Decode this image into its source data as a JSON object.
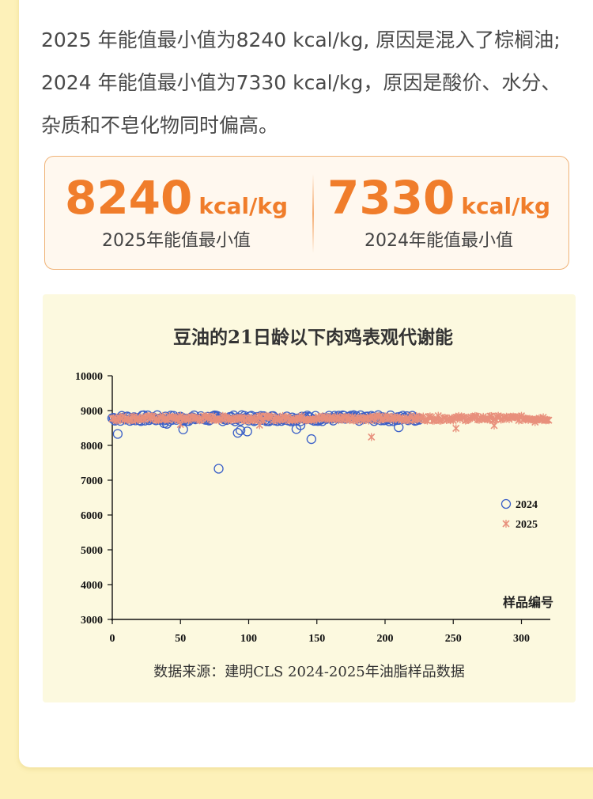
{
  "intro": {
    "line1": "2025 年能值最小值为8240 kcal/kg, 原因是混入了棕榈油;",
    "line2": "2024 年能值最小值为7330 kcal/kg，原因是酸价、水分、",
    "line3": "杂质和不皂化物同时偏高。"
  },
  "stats": [
    {
      "value": "8240",
      "unit": "kcal/kg",
      "label": "2025年能值最小值"
    },
    {
      "value": "7330",
      "unit": "kcal/kg",
      "label": "2024年能值最小值"
    }
  ],
  "colors": {
    "accent": "#f07d2b",
    "series2024": "#3a5fc8",
    "series2025": "#e8907c"
  },
  "chart_data": {
    "type": "scatter",
    "title": "豆油的21日龄以下肉鸡表观代谢能",
    "xlabel": "样品编号",
    "ylabel": "",
    "xlim": [
      0,
      320
    ],
    "ylim": [
      3000,
      10000
    ],
    "xticks": [
      0,
      50,
      100,
      150,
      200,
      250,
      300
    ],
    "yticks": [
      3000,
      4000,
      5000,
      6000,
      7000,
      8000,
      9000,
      10000
    ],
    "legend_position": "right",
    "grid": false,
    "series": [
      {
        "name": "2024",
        "marker": "circle",
        "x_range": [
          0,
          225
        ],
        "typical_value": 8780,
        "outliers": [
          {
            "x": 0,
            "y": 8780
          },
          {
            "x": 4,
            "y": 8330
          },
          {
            "x": 38,
            "y": 8640
          },
          {
            "x": 40,
            "y": 8620
          },
          {
            "x": 52,
            "y": 8460
          },
          {
            "x": 78,
            "y": 7330
          },
          {
            "x": 92,
            "y": 8360
          },
          {
            "x": 94,
            "y": 8430
          },
          {
            "x": 99,
            "y": 8400
          },
          {
            "x": 135,
            "y": 8470
          },
          {
            "x": 138,
            "y": 8580
          },
          {
            "x": 146,
            "y": 8180
          },
          {
            "x": 210,
            "y": 8520
          }
        ]
      },
      {
        "name": "2025",
        "marker": "x",
        "x_range": [
          0,
          320
        ],
        "typical_value": 8780,
        "outliers": [
          {
            "x": 50,
            "y": 8600
          },
          {
            "x": 108,
            "y": 8580
          },
          {
            "x": 190,
            "y": 8240
          },
          {
            "x": 252,
            "y": 8490
          },
          {
            "x": 280,
            "y": 8570
          },
          {
            "x": 310,
            "y": 8670
          },
          {
            "x": 318,
            "y": 8730
          }
        ]
      }
    ]
  },
  "source": "数据来源：建明CLS 2024-2025年油脂样品数据"
}
